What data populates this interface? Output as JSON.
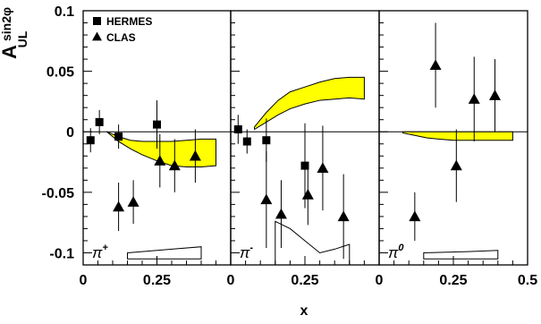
{
  "chart_data": {
    "type": "scatter",
    "ylabel": "A",
    "ylabel_sub": "UL",
    "ylabel_sup": "sin2φ",
    "xlabel": "x",
    "xlim": [
      0,
      0.5
    ],
    "ylim": [
      -0.11,
      0.1
    ],
    "yticks": [
      0.1,
      0.05,
      0,
      -0.05,
      -0.1
    ],
    "ytick_labels": [
      "0.1",
      "0.05",
      "0",
      "-0.05",
      "-0.1"
    ],
    "legend": {
      "position": "top-left",
      "entries": [
        "HERMES",
        "CLAS"
      ]
    },
    "panels": [
      {
        "label": "π",
        "label_sup": "+",
        "xtick_labels": [
          "0",
          "0.25"
        ],
        "series": [
          {
            "name": "HERMES",
            "marker": "square",
            "points": [
              {
                "x": 0.025,
                "y": -0.007,
                "err": 0.01
              },
              {
                "x": 0.055,
                "y": 0.008,
                "err": 0.01
              },
              {
                "x": 0.12,
                "y": -0.004,
                "err": 0.01
              },
              {
                "x": 0.25,
                "y": 0.006,
                "err": 0.02
              }
            ]
          },
          {
            "name": "CLAS",
            "marker": "triangle",
            "points": [
              {
                "x": 0.12,
                "y": -0.062,
                "err": 0.02
              },
              {
                "x": 0.17,
                "y": -0.058,
                "err": 0.018
              },
              {
                "x": 0.26,
                "y": -0.024,
                "err": 0.022
              },
              {
                "x": 0.31,
                "y": -0.028,
                "err": 0.022
              },
              {
                "x": 0.38,
                "y": -0.02,
                "err": 0.022
              }
            ]
          }
        ],
        "band": {
          "x": [
            0.08,
            0.12,
            0.16,
            0.2,
            0.25,
            0.3,
            0.35,
            0.4,
            0.45
          ],
          "upper": [
            0,
            -0.004,
            -0.007,
            -0.008,
            -0.008,
            -0.008,
            -0.007,
            -0.006,
            -0.006
          ],
          "lower": [
            0,
            -0.008,
            -0.014,
            -0.019,
            -0.024,
            -0.028,
            -0.029,
            -0.029,
            -0.028
          ]
        },
        "sys_band": {
          "x": [
            0.15,
            0.3,
            0.4
          ],
          "upper": [
            -0.1,
            -0.097,
            -0.095
          ],
          "lower": [
            -0.105,
            -0.105,
            -0.105
          ]
        }
      },
      {
        "label": "π",
        "label_sup": "-",
        "xtick_labels": [
          "0",
          "0.25"
        ],
        "series": [
          {
            "name": "HERMES",
            "marker": "square",
            "points": [
              {
                "x": 0.025,
                "y": 0.002,
                "err": 0.012
              },
              {
                "x": 0.055,
                "y": -0.008,
                "err": 0.01
              },
              {
                "x": 0.12,
                "y": -0.007,
                "err": 0.018
              },
              {
                "x": 0.25,
                "y": -0.028,
                "err": 0.035
              }
            ]
          },
          {
            "name": "CLAS",
            "marker": "triangle",
            "points": [
              {
                "x": 0.12,
                "y": -0.056,
                "err": 0.04
              },
              {
                "x": 0.17,
                "y": -0.068,
                "err": 0.028
              },
              {
                "x": 0.26,
                "y": -0.052,
                "err": 0.025
              },
              {
                "x": 0.31,
                "y": -0.03,
                "err": 0.035
              },
              {
                "x": 0.38,
                "y": -0.07,
                "err": 0.035
              }
            ]
          }
        ],
        "band": {
          "x": [
            0.08,
            0.12,
            0.16,
            0.2,
            0.25,
            0.3,
            0.35,
            0.4,
            0.45
          ],
          "upper": [
            0.004,
            0.016,
            0.026,
            0.033,
            0.037,
            0.041,
            0.044,
            0.045,
            0.045
          ],
          "lower": [
            0.002,
            0.008,
            0.014,
            0.019,
            0.023,
            0.026,
            0.027,
            0.028,
            0.027
          ]
        },
        "sys_band": {
          "x": [
            0.15,
            0.2,
            0.25,
            0.3,
            0.35,
            0.4
          ],
          "upper": [
            -0.074,
            -0.08,
            -0.09,
            -0.1,
            -0.097,
            -0.093
          ],
          "lower": [
            -0.11,
            -0.11,
            -0.11,
            -0.11,
            -0.11,
            -0.11
          ]
        }
      },
      {
        "label": "π",
        "label_sup": "0",
        "xtick_labels": [
          "0",
          "0.25",
          "0.5"
        ],
        "series": [
          {
            "name": "CLAS",
            "marker": "triangle",
            "points": [
              {
                "x": 0.12,
                "y": -0.07,
                "err": 0.02
              },
              {
                "x": 0.19,
                "y": 0.055,
                "err": 0.035
              },
              {
                "x": 0.26,
                "y": -0.028,
                "err": 0.03
              },
              {
                "x": 0.32,
                "y": 0.027,
                "err": 0.035
              },
              {
                "x": 0.39,
                "y": 0.03,
                "err": 0.03
              }
            ]
          }
        ],
        "band": {
          "x": [
            0.08,
            0.12,
            0.16,
            0.2,
            0.25,
            0.3,
            0.35,
            0.4,
            0.45
          ],
          "upper": [
            0,
            0,
            0,
            0,
            0,
            0,
            0,
            0,
            0
          ],
          "lower": [
            -0.001,
            -0.003,
            -0.005,
            -0.006,
            -0.007,
            -0.007,
            -0.007,
            -0.007,
            -0.007
          ]
        },
        "sys_band": {
          "x": [
            0.15,
            0.3,
            0.4
          ],
          "upper": [
            -0.1,
            -0.099,
            -0.098
          ],
          "lower": [
            -0.105,
            -0.105,
            -0.105
          ]
        }
      }
    ],
    "band_color": "#ffff00",
    "grid": false
  }
}
